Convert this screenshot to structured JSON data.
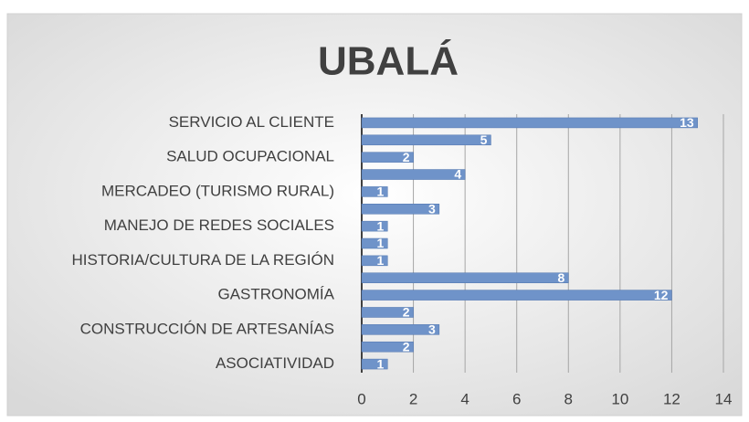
{
  "chart_data": {
    "type": "bar",
    "orientation": "horizontal",
    "title": "UBALÁ",
    "categories": [
      "SERVICIO AL CLIENTE",
      null,
      "SALUD OCUPACIONAL",
      null,
      "MERCADEO (TURISMO RURAL)",
      null,
      "MANEJO DE REDES SOCIALES",
      null,
      "HISTORIA/CULTURA DE LA REGIÓN",
      null,
      "GASTRONOMÍA",
      null,
      "CONSTRUCCIÓN DE ARTESANÍAS",
      null,
      "ASOCIATIVIDAD"
    ],
    "values": [
      13,
      5,
      2,
      4,
      1,
      3,
      1,
      1,
      1,
      8,
      12,
      2,
      3,
      2,
      1
    ],
    "color": "#6f93c9",
    "xlim": [
      0,
      14
    ],
    "xticks": [
      0,
      2,
      4,
      6,
      8,
      10,
      12,
      14
    ],
    "grid": true
  }
}
